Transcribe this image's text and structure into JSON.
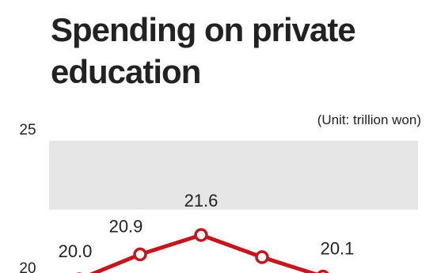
{
  "chart_data": {
    "type": "line",
    "title": "Spending on private education",
    "unit_label": "(Unit: trillion won)",
    "values": [
      20.0,
      20.9,
      21.6,
      20.8,
      20.1
    ],
    "value_labels": [
      "20.0",
      "20.9",
      "21.6",
      null,
      "20.1"
    ],
    "color": "#c4161c",
    "ylim": [
      20,
      25
    ],
    "yticks": [
      20,
      25
    ]
  }
}
